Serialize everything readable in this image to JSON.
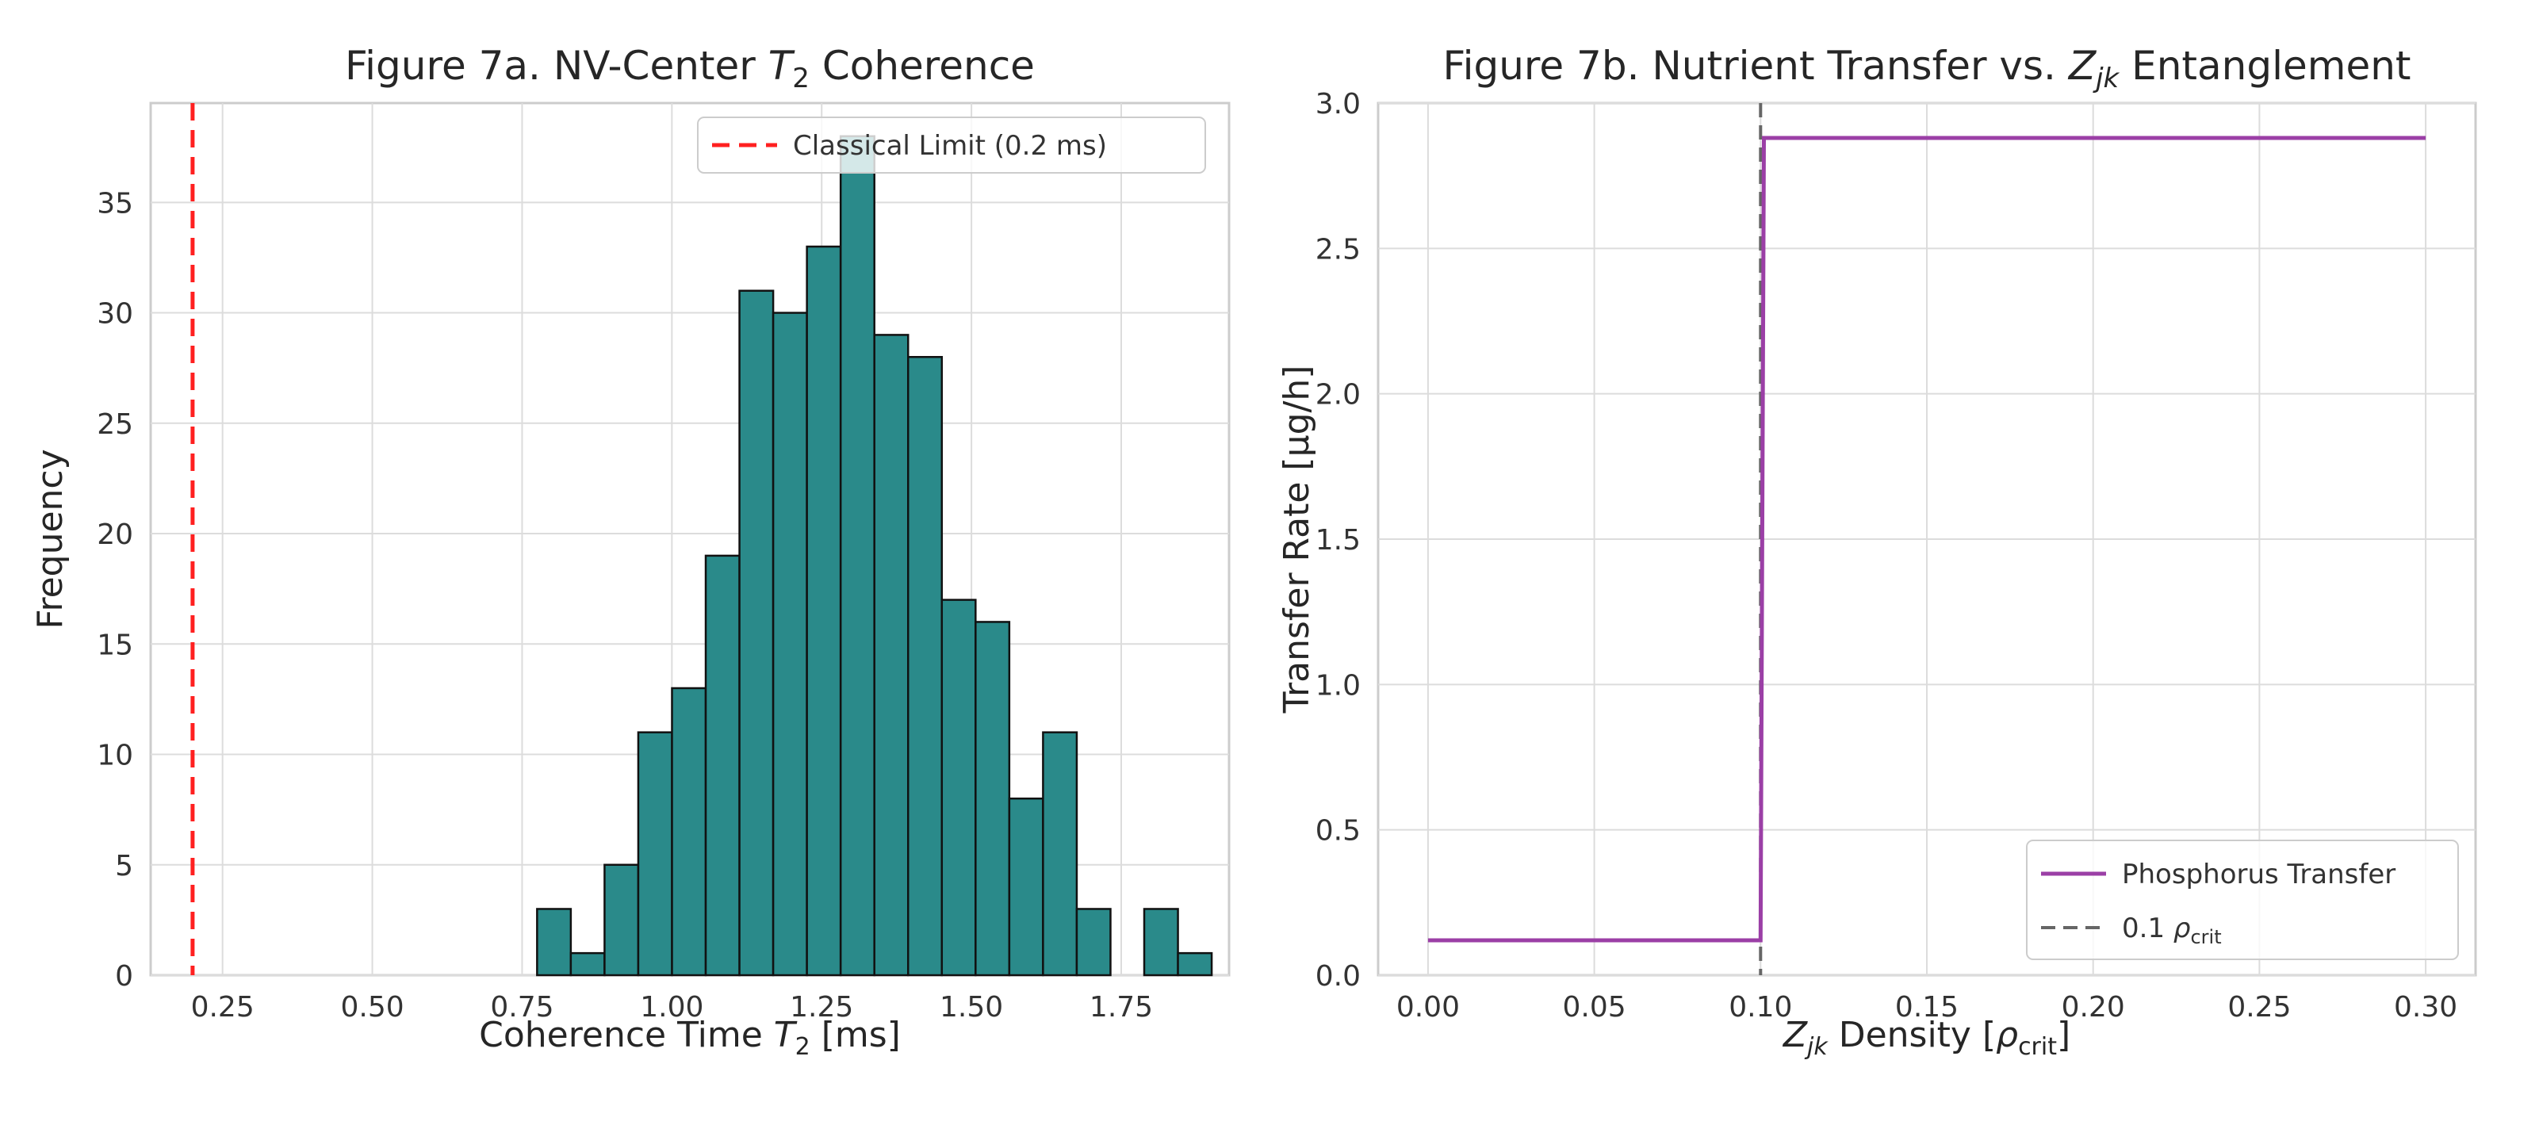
{
  "colors": {
    "background": "#ffffff",
    "plot_background": "#ffffff",
    "grid": "#dcdcdc",
    "spine": "#cccccc",
    "bar_fill": "#2a8a8a",
    "bar_edge": "#111111",
    "classical_limit": "#ff2020",
    "phosphorus": "#9b3fa6",
    "rho_line": "#666666"
  },
  "chart_data": [
    {
      "type": "bar",
      "title_parts": [
        "Figure 7a. NV-Center ",
        "T",
        "2",
        " Coherence"
      ],
      "xlabel_parts": [
        "Coherence Time ",
        "T",
        "2",
        " [ms]"
      ],
      "ylabel": "Frequency",
      "xlim": [
        0.13,
        1.93
      ],
      "ylim": [
        0,
        39.5
      ],
      "xticks": [
        0.25,
        0.5,
        0.75,
        1.0,
        1.25,
        1.5,
        1.75
      ],
      "xtick_labels": [
        "0.25",
        "0.50",
        "0.75",
        "1.00",
        "1.25",
        "1.50",
        "1.75"
      ],
      "yticks": [
        0,
        5,
        10,
        15,
        20,
        25,
        30,
        35
      ],
      "ytick_labels": [
        "0",
        "5",
        "10",
        "15",
        "20",
        "25",
        "30",
        "35"
      ],
      "grid": true,
      "bin_edges": [
        0.775,
        0.8313,
        0.8876,
        0.9439,
        1.0002,
        1.0565,
        1.1128,
        1.1691,
        1.2254,
        1.2817,
        1.338,
        1.3943,
        1.4506,
        1.5069,
        1.5632,
        1.6195,
        1.6758,
        1.7321,
        1.7884,
        1.8447,
        1.901
      ],
      "values": [
        3,
        1,
        5,
        11,
        13,
        19,
        31,
        30,
        33,
        38,
        29,
        28,
        17,
        16,
        8,
        11,
        3,
        0,
        3,
        1
      ],
      "reference_line": {
        "x": 0.2
      },
      "legend": {
        "position": "upper right",
        "entries": [
          "Classical Limit (0.2 ms)"
        ]
      }
    },
    {
      "type": "line",
      "title_parts": [
        "Figure 7b. Nutrient Transfer vs. ",
        "Z",
        "jk",
        " Entanglement"
      ],
      "xlabel_parts": [
        "Z",
        "jk",
        " Density [",
        "ρ",
        "crit",
        "]"
      ],
      "ylabel": "Transfer Rate [µg/h]",
      "xlim": [
        -0.015,
        0.315
      ],
      "ylim": [
        0,
        3.0
      ],
      "xticks": [
        0.0,
        0.05,
        0.1,
        0.15,
        0.2,
        0.25,
        0.3
      ],
      "xtick_labels": [
        "0.00",
        "0.05",
        "0.10",
        "0.15",
        "0.20",
        "0.25",
        "0.30"
      ],
      "yticks": [
        0.0,
        0.5,
        1.0,
        1.5,
        2.0,
        2.5,
        3.0
      ],
      "ytick_labels": [
        "0.0",
        "0.5",
        "1.0",
        "1.5",
        "2.0",
        "2.5",
        "3.0"
      ],
      "grid": true,
      "series": [
        {
          "name": "Phosphorus Transfer",
          "x": [
            0.0,
            0.1,
            0.101,
            0.3
          ],
          "y": [
            0.12,
            0.12,
            2.88,
            2.88
          ]
        }
      ],
      "reference_line": {
        "x": 0.1
      },
      "legend": {
        "position": "lower right",
        "entries": [
          "Phosphorus Transfer",
          "0.1 ρcrit"
        ],
        "entry2_parts": [
          "0.1 ",
          "ρ",
          "crit"
        ]
      }
    }
  ]
}
